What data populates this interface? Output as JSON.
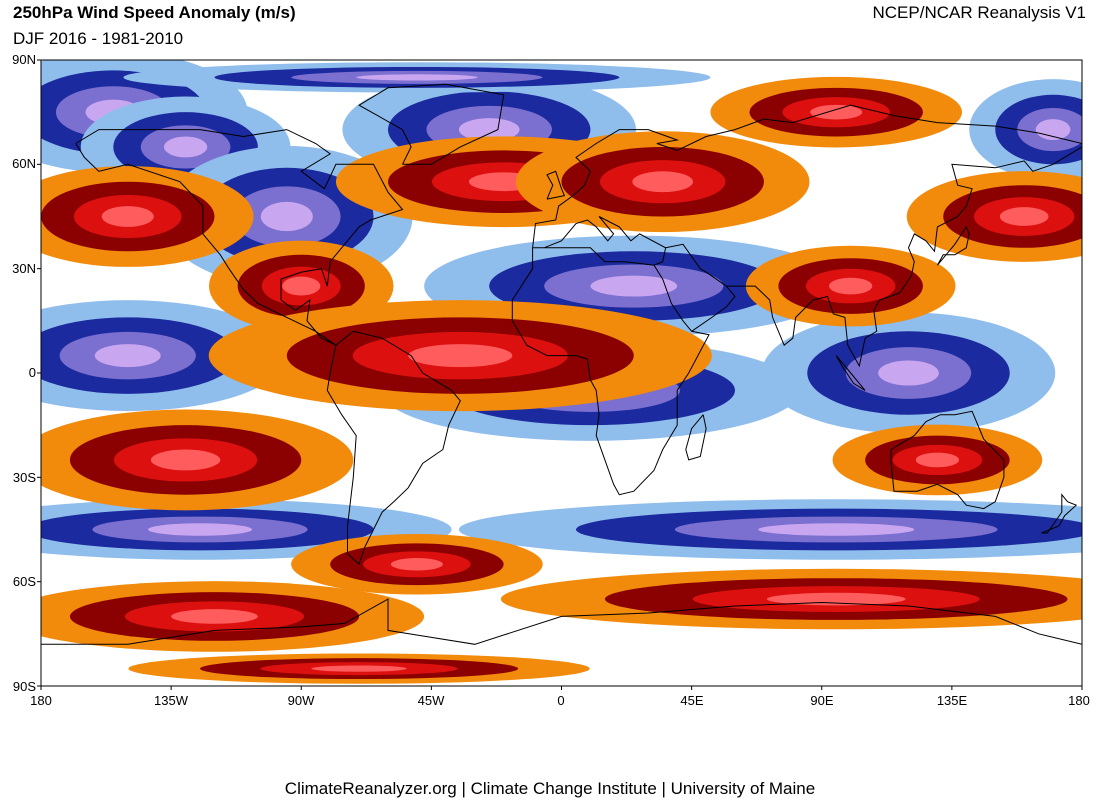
{
  "header": {
    "title": "250hPa Wind Speed Anomaly (m/s)",
    "subtitle": "DJF 2016 - 1981-2010",
    "source": "NCEP/NCAR Reanalysis V1"
  },
  "footer": {
    "credit": "ClimateReanalyzer.org | Climate Change Institute | University of Maine"
  },
  "axes": {
    "lat_labels": [
      "90N",
      "60N",
      "30N",
      "0",
      "30S",
      "60S",
      "90S"
    ],
    "lon_labels": [
      "180",
      "135W",
      "90W",
      "45W",
      "0",
      "45E",
      "90E",
      "135E",
      "180"
    ]
  },
  "colors": {
    "neg_strong": "#1b2a9e",
    "neg_medium": "#7b6fd0",
    "neg_light": "#c9a7f0",
    "neg_weak": "#8fbdec",
    "pos_weak": "#f28a0c",
    "pos_medium": "#8b0000",
    "pos_strong": "#dd1010",
    "pos_peak": "#ff5d5d"
  },
  "map": {
    "projection": "equirectangular",
    "lon_range": [
      -180,
      180
    ],
    "lat_range": [
      -90,
      90
    ],
    "anomaly_features": [
      {
        "sign": "negative",
        "lon": -155,
        "lat": 75,
        "rlon": 32,
        "rlat": 12
      },
      {
        "sign": "negative",
        "lon": -130,
        "lat": 65,
        "rlon": 25,
        "rlat": 10
      },
      {
        "sign": "negative",
        "lon": -95,
        "lat": 45,
        "rlon": 30,
        "rlat": 14
      },
      {
        "sign": "negative",
        "lon": -25,
        "lat": 70,
        "rlon": 35,
        "rlat": 11
      },
      {
        "sign": "negative",
        "lon": 25,
        "lat": 25,
        "rlon": 50,
        "rlat": 10
      },
      {
        "sign": "negative",
        "lon": -150,
        "lat": 5,
        "rlon": 38,
        "rlat": 11
      },
      {
        "sign": "negative",
        "lon": -125,
        "lat": -45,
        "rlon": 60,
        "rlat": 6
      },
      {
        "sign": "negative",
        "lon": 120,
        "lat": 0,
        "rlon": 35,
        "rlat": 12
      },
      {
        "sign": "negative",
        "lon": 95,
        "lat": -45,
        "rlon": 90,
        "rlat": 6
      },
      {
        "sign": "negative",
        "lon": 10,
        "lat": -5,
        "rlon": 50,
        "rlat": 10
      },
      {
        "sign": "negative",
        "lon": -50,
        "lat": 85,
        "rlon": 70,
        "rlat": 3
      },
      {
        "sign": "negative",
        "lon": 170,
        "lat": 70,
        "rlon": 20,
        "rlat": 10
      },
      {
        "sign": "positive",
        "lon": -150,
        "lat": 45,
        "rlon": 30,
        "rlat": 10
      },
      {
        "sign": "positive",
        "lon": -20,
        "lat": 55,
        "rlon": 40,
        "rlat": 9
      },
      {
        "sign": "positive",
        "lon": 35,
        "lat": 55,
        "rlon": 35,
        "rlat": 10
      },
      {
        "sign": "positive",
        "lon": -90,
        "lat": 25,
        "rlon": 22,
        "rlat": 9
      },
      {
        "sign": "positive",
        "lon": -35,
        "lat": 5,
        "rlon": 60,
        "rlat": 11
      },
      {
        "sign": "positive",
        "lon": -130,
        "lat": -25,
        "rlon": 40,
        "rlat": 10
      },
      {
        "sign": "positive",
        "lon": -120,
        "lat": -70,
        "rlon": 50,
        "rlat": 7
      },
      {
        "sign": "positive",
        "lon": -50,
        "lat": -55,
        "rlon": 30,
        "rlat": 6
      },
      {
        "sign": "positive",
        "lon": 95,
        "lat": -65,
        "rlon": 80,
        "rlat": 6
      },
      {
        "sign": "positive",
        "lon": 160,
        "lat": 45,
        "rlon": 28,
        "rlat": 9
      },
      {
        "sign": "positive",
        "lon": 95,
        "lat": 75,
        "rlon": 30,
        "rlat": 7
      },
      {
        "sign": "positive",
        "lon": 130,
        "lat": -25,
        "rlon": 25,
        "rlat": 7
      },
      {
        "sign": "positive",
        "lon": 100,
        "lat": 25,
        "rlon": 25,
        "rlat": 8
      },
      {
        "sign": "positive",
        "lon": -70,
        "lat": -85,
        "rlon": 55,
        "rlat": 3
      }
    ]
  }
}
